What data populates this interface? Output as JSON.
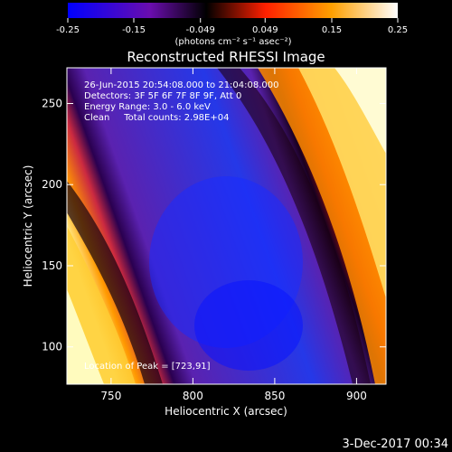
{
  "chart_data": {
    "type": "heatmap",
    "title": "Reconstructed RHESSI Image",
    "xlabel": "Heliocentric X (arcsec)",
    "ylabel": "Heliocentric Y (arcsec)",
    "xlim": [
      723,
      918
    ],
    "ylim": [
      77,
      272
    ],
    "x_ticks": [
      "750",
      "800",
      "850",
      "900"
    ],
    "x_tick_values": [
      750,
      800,
      850,
      900
    ],
    "y_ticks": [
      "100",
      "150",
      "200",
      "250"
    ],
    "y_tick_values": [
      100,
      150,
      200,
      250
    ],
    "colorbar": {
      "min": -0.25,
      "max": 0.25,
      "ticks": [
        "-0.25",
        "-0.15",
        "-0.049",
        "0.049",
        "0.15",
        "0.25"
      ],
      "tick_values": [
        -0.25,
        -0.15,
        -0.049,
        0.049,
        0.15,
        0.25
      ],
      "units_label": "(photons cm⁻² s⁻¹ asec⁻²)",
      "colormap": [
        "#0000ff",
        "#6a0dad",
        "#000000",
        "#ff2000",
        "#ffa000",
        "#ffffff"
      ]
    },
    "annotations": [
      "26-Jun-2015 20:54:08.000 to 21:04:08.000",
      "Detectors: 3F 5F 6F 7F 8F 9F, Att 0",
      "Energy Range: 3.0 - 6.0 keV",
      "Clean     Total counts: 2.98E+04",
      "Location of Peak = [723,91]"
    ],
    "peak_location": [
      723,
      91
    ]
  },
  "footer_date": "3-Dec-2017 00:34"
}
